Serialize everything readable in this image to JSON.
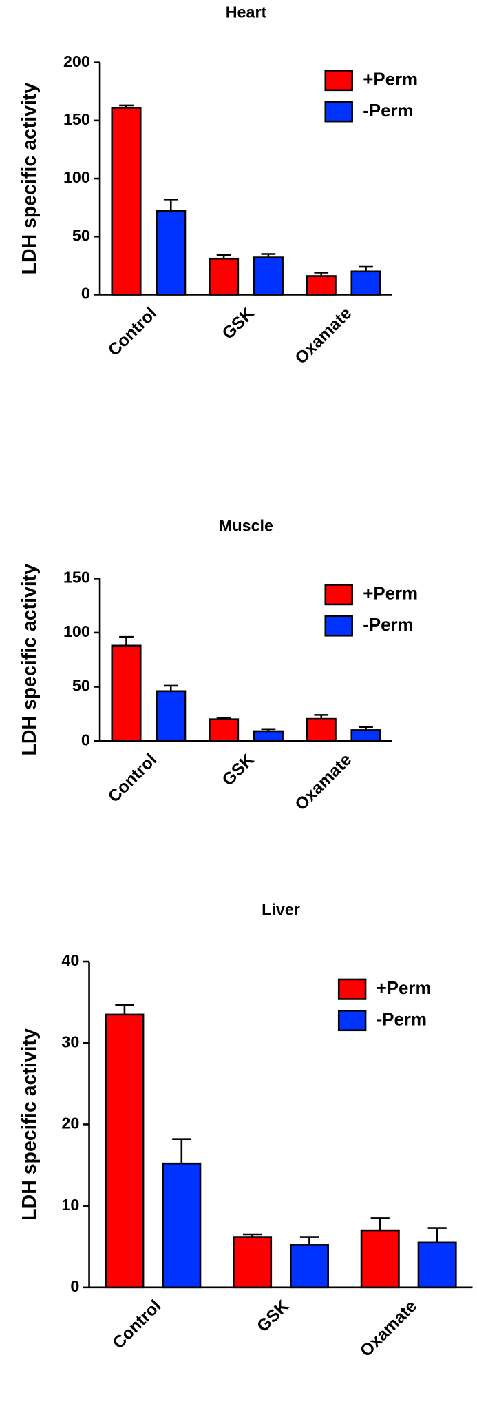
{
  "chart_data": [
    {
      "type": "bar",
      "title": "Heart",
      "y_label": "LDH specific activity",
      "categories": [
        "Control",
        "GSK",
        "Oxamate"
      ],
      "series": [
        {
          "name": "+Perm",
          "color": "#ff0000",
          "values": [
            161,
            31,
            16
          ],
          "errors": [
            2,
            3,
            3
          ]
        },
        {
          "name": "-Perm",
          "color": "#0033ff",
          "values": [
            72,
            32,
            20
          ],
          "errors": [
            10,
            3,
            4
          ]
        }
      ],
      "ylim": [
        0,
        200
      ],
      "yticks": [
        0,
        50,
        100,
        150,
        200
      ],
      "legend": "upper right"
    },
    {
      "type": "bar",
      "title": "Muscle",
      "y_label": "LDH specific activity",
      "categories": [
        "Control",
        "GSK",
        "Oxamate"
      ],
      "series": [
        {
          "name": "+Perm",
          "color": "#ff0000",
          "values": [
            88,
            20,
            21
          ],
          "errors": [
            8,
            1.5,
            3
          ]
        },
        {
          "name": "-Perm",
          "color": "#0033ff",
          "values": [
            46,
            9,
            10
          ],
          "errors": [
            5,
            2,
            3
          ]
        }
      ],
      "ylim": [
        0,
        150
      ],
      "yticks": [
        0,
        50,
        100,
        150
      ],
      "legend": "upper right"
    },
    {
      "type": "bar",
      "title": "Liver",
      "y_label": "LDH specific activity",
      "categories": [
        "Control",
        "GSK",
        "Oxamate"
      ],
      "series": [
        {
          "name": "+Perm",
          "color": "#ff0000",
          "values": [
            33.5,
            6.2,
            7
          ],
          "errors": [
            1.2,
            0.3,
            1.5
          ]
        },
        {
          "name": "-Perm",
          "color": "#0033ff",
          "values": [
            15.2,
            5.2,
            5.5
          ],
          "errors": [
            3,
            1,
            1.8
          ]
        }
      ],
      "ylim": [
        0,
        40
      ],
      "yticks": [
        0,
        10,
        20,
        30,
        40
      ],
      "legend": "upper right"
    }
  ]
}
